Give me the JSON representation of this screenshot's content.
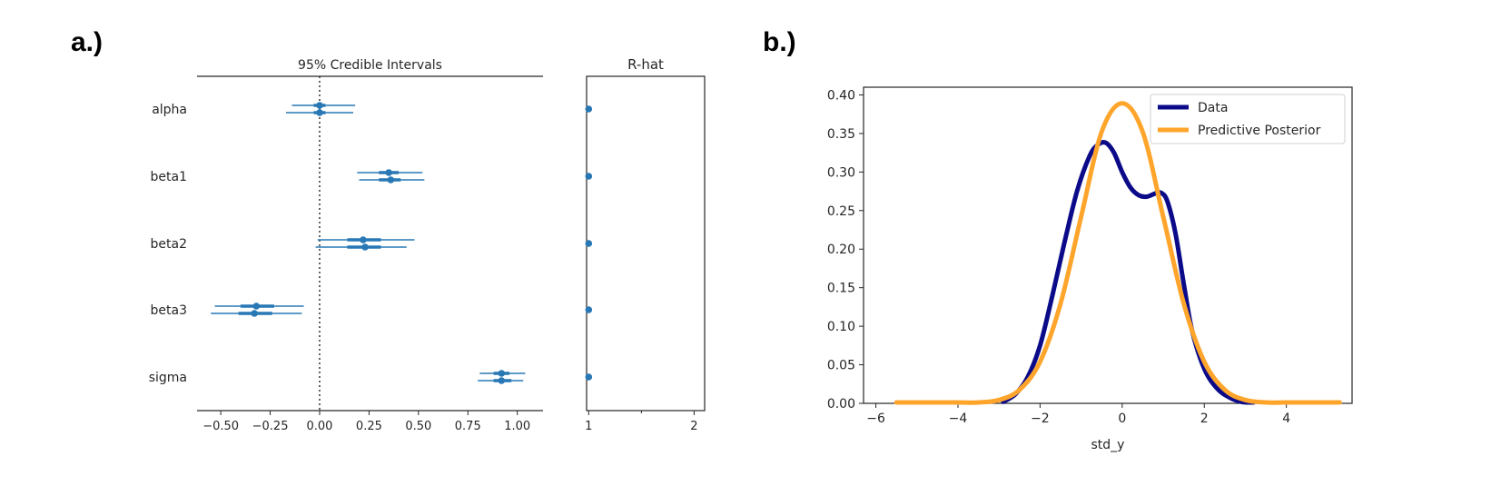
{
  "panel_a_label": "a.)",
  "panel_b_label": "b.)",
  "chart_data": [
    {
      "type": "forest",
      "title": "95% Credible Intervals",
      "xlim": [
        -0.62,
        1.13
      ],
      "xticks": [
        -0.5,
        -0.25,
        0.0,
        0.25,
        0.5,
        0.75,
        1.0
      ],
      "xtick_labels": [
        "−0.50",
        "−0.25",
        "0.00",
        "0.25",
        "0.50",
        "0.75",
        "1.00"
      ],
      "reference_line": 0.0,
      "color": "#2878b5",
      "parameters": [
        {
          "name": "alpha",
          "chains": [
            {
              "mean": 0.0,
              "hdi50": [
                -0.03,
                0.03
              ],
              "hdi95": [
                -0.14,
                0.18
              ]
            },
            {
              "mean": 0.0,
              "hdi50": [
                -0.03,
                0.03
              ],
              "hdi95": [
                -0.17,
                0.17
              ]
            }
          ]
        },
        {
          "name": "beta1",
          "chains": [
            {
              "mean": 0.35,
              "hdi50": [
                0.3,
                0.4
              ],
              "hdi95": [
                0.19,
                0.52
              ]
            },
            {
              "mean": 0.36,
              "hdi50": [
                0.3,
                0.41
              ],
              "hdi95": [
                0.2,
                0.53
              ]
            }
          ]
        },
        {
          "name": "beta2",
          "chains": [
            {
              "mean": 0.22,
              "hdi50": [
                0.14,
                0.31
              ],
              "hdi95": [
                -0.01,
                0.48
              ]
            },
            {
              "mean": 0.23,
              "hdi50": [
                0.14,
                0.31
              ],
              "hdi95": [
                -0.02,
                0.44
              ]
            }
          ]
        },
        {
          "name": "beta3",
          "chains": [
            {
              "mean": -0.32,
              "hdi50": [
                -0.4,
                -0.23
              ],
              "hdi95": [
                -0.53,
                -0.08
              ]
            },
            {
              "mean": -0.33,
              "hdi50": [
                -0.41,
                -0.24
              ],
              "hdi95": [
                -0.55,
                -0.09
              ]
            }
          ]
        },
        {
          "name": "sigma",
          "chains": [
            {
              "mean": 0.92,
              "hdi50": [
                0.88,
                0.96
              ],
              "hdi95": [
                0.81,
                1.04
              ]
            },
            {
              "mean": 0.92,
              "hdi50": [
                0.88,
                0.97
              ],
              "hdi95": [
                0.8,
                1.03
              ]
            }
          ]
        }
      ]
    },
    {
      "type": "scatter",
      "title": "R-hat",
      "xlim": [
        0.98,
        2.1
      ],
      "xticks": [
        1,
        2
      ],
      "xtick_labels": [
        "1",
        "2"
      ],
      "color": "#2878b5",
      "values": [
        1.0,
        1.0,
        1.0,
        1.0,
        1.0
      ]
    },
    {
      "type": "line",
      "xlabel": "std_y",
      "xlim": [
        -6.3,
        5.6
      ],
      "ylim": [
        0.0,
        0.41
      ],
      "xticks": [
        -6,
        -4,
        -2,
        0,
        2,
        4
      ],
      "xtick_labels": [
        "−6",
        "−4",
        "−2",
        "0",
        "2",
        "4"
      ],
      "yticks": [
        0.0,
        0.05,
        0.1,
        0.15,
        0.2,
        0.25,
        0.3,
        0.35,
        0.4
      ],
      "ytick_labels": [
        "0.00",
        "0.05",
        "0.10",
        "0.15",
        "0.20",
        "0.25",
        "0.30",
        "0.35",
        "0.40"
      ],
      "legend_position": "top-right",
      "series": [
        {
          "name": "Data",
          "color": "#0b0b8a",
          "x": [
            -2.9,
            -2.6,
            -2.3,
            -2.0,
            -1.7,
            -1.4,
            -1.1,
            -0.8,
            -0.6,
            -0.4,
            -0.2,
            0.0,
            0.2,
            0.4,
            0.6,
            0.8,
            0.95,
            1.1,
            1.3,
            1.5,
            1.7,
            2.0,
            2.3,
            2.6,
            2.9,
            3.2
          ],
          "y": [
            0.002,
            0.012,
            0.034,
            0.075,
            0.14,
            0.21,
            0.275,
            0.32,
            0.335,
            0.338,
            0.325,
            0.3,
            0.28,
            0.27,
            0.268,
            0.272,
            0.273,
            0.262,
            0.22,
            0.155,
            0.095,
            0.045,
            0.02,
            0.008,
            0.002,
            0.0
          ]
        },
        {
          "name": "Predictive Posterior",
          "color": "#ffa52c",
          "x": [
            -5.5,
            -4.5,
            -4.0,
            -3.5,
            -3.0,
            -2.5,
            -2.0,
            -1.5,
            -1.0,
            -0.5,
            0.0,
            0.5,
            1.0,
            1.5,
            2.0,
            2.5,
            3.0,
            3.5,
            4.0,
            4.5,
            5.3
          ],
          "y": [
            0.0,
            0.0,
            0.0001,
            0.0009,
            0.0044,
            0.0175,
            0.054,
            0.1295,
            0.242,
            0.352,
            0.389,
            0.352,
            0.242,
            0.1295,
            0.054,
            0.0175,
            0.0044,
            0.0009,
            0.0001,
            0.0,
            0.0
          ]
        }
      ]
    }
  ]
}
